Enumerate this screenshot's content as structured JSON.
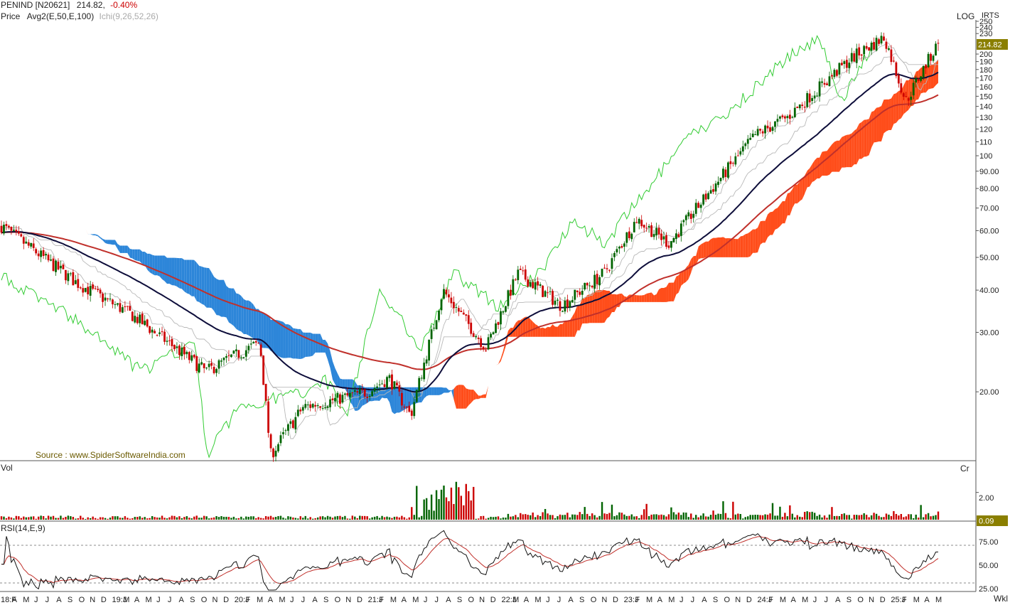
{
  "header": {
    "symbol": "PENIND [N20621]",
    "last": "214.82,",
    "change": "-0.40%",
    "line2_label": "Price",
    "avg_label": "Avg2(E,50,E,100)",
    "ichi_label": "Ichi(9,26,52,26)",
    "log_label": "LOG",
    "irts_label": "IRTS",
    "source": "Source : www.SpiderSoftwareIndia.com"
  },
  "panels": {
    "volume": {
      "label": "Vol",
      "unit_label": "Cr",
      "tick": "2.00",
      "last_value": "0.09"
    },
    "rsi": {
      "label": "RSI(14,E,9)",
      "ticks": [
        "75.00",
        "50.00",
        "25.00"
      ]
    },
    "period_label": "Wkl"
  },
  "price_axis": {
    "last_price_tag": "214.82",
    "ticks": [
      "250",
      "240",
      "230",
      "200",
      "190",
      "180",
      "170",
      "160",
      "150",
      "140",
      "130",
      "120",
      "110",
      "100",
      "90.00",
      "80.00",
      "70.00",
      "60.00",
      "50.00",
      "40.00",
      "30.00",
      "20.00"
    ]
  },
  "x_axis_labels": [
    "18:F",
    "A",
    "M",
    "J",
    "J",
    "A",
    "S",
    "O",
    "N",
    "D",
    "19:J",
    "M",
    "A",
    "M",
    "J",
    "J",
    "A",
    "S",
    "O",
    "N",
    "D",
    "20:J",
    "F",
    "M",
    "A",
    "M",
    "J",
    "J",
    "A",
    "S",
    "O",
    "N",
    "D",
    "21:J",
    "F",
    "M",
    "A",
    "M",
    "J",
    "J",
    "A",
    "S",
    "O",
    "N",
    "D",
    "22:J",
    "M",
    "A",
    "M",
    "J",
    "J",
    "A",
    "S",
    "O",
    "N",
    "D",
    "23:J",
    "F",
    "M",
    "A",
    "M",
    "J",
    "J",
    "A",
    "S",
    "O",
    "N",
    "D",
    "24:J",
    "F",
    "M",
    "A",
    "M",
    "J",
    "J",
    "A",
    "S",
    "O",
    "N",
    "D",
    "25:J",
    "F",
    "M",
    "A",
    "M"
  ],
  "colors": {
    "up_candle": "#006400",
    "down_candle": "#cc0000",
    "ema50": "#0d0d3a",
    "ema100": "#c0302b",
    "chikou": "#33cc33",
    "tenkan_kijun": "#b8b8b8",
    "cloud_bull": "#ff4d1a",
    "cloud_bear": "#2d86d9",
    "price_tag_bg": "#8a7f00",
    "vol_tag_bg": "#8a7f00",
    "rsi_line": "#111111",
    "rsi_signal": "#c0302b"
  },
  "chart_data": {
    "type": "candlestick",
    "timeframe": "weekly",
    "scale": "log",
    "price_range": [
      13,
      250
    ],
    "key_price_points": [
      {
        "date": "2018-02",
        "price": 62
      },
      {
        "date": "2018-09",
        "price": 42
      },
      {
        "date": "2019-02",
        "price": 34
      },
      {
        "date": "2019-09",
        "price": 23
      },
      {
        "date": "2020-02",
        "price": 28
      },
      {
        "date": "2020-03",
        "price": 13
      },
      {
        "date": "2020-06",
        "price": 18
      },
      {
        "date": "2020-12",
        "price": 20
      },
      {
        "date": "2021-02",
        "price": 22
      },
      {
        "date": "2021-04",
        "price": 17
      },
      {
        "date": "2021-07",
        "price": 40
      },
      {
        "date": "2021-11",
        "price": 27
      },
      {
        "date": "2022-02",
        "price": 45
      },
      {
        "date": "2022-06",
        "price": 36
      },
      {
        "date": "2022-10",
        "price": 45
      },
      {
        "date": "2023-01",
        "price": 65
      },
      {
        "date": "2023-04",
        "price": 55
      },
      {
        "date": "2023-08",
        "price": 80
      },
      {
        "date": "2023-12",
        "price": 115
      },
      {
        "date": "2024-03",
        "price": 130
      },
      {
        "date": "2024-06",
        "price": 160
      },
      {
        "date": "2024-09",
        "price": 195
      },
      {
        "date": "2024-12",
        "price": 225
      },
      {
        "date": "2025-02",
        "price": 145
      },
      {
        "date": "2025-04",
        "price": 190
      },
      {
        "date": "2025-05",
        "price": 214.82
      }
    ],
    "series": [
      {
        "name": "Avg2(E,50,E,100)"
      },
      {
        "name": "Ichi(9,26,52,26)"
      }
    ],
    "volume_ylim": [
      0,
      3.6
    ],
    "rsi_ylim": [
      20,
      90
    ],
    "rsi_levels": [
      75,
      50,
      25
    ]
  }
}
